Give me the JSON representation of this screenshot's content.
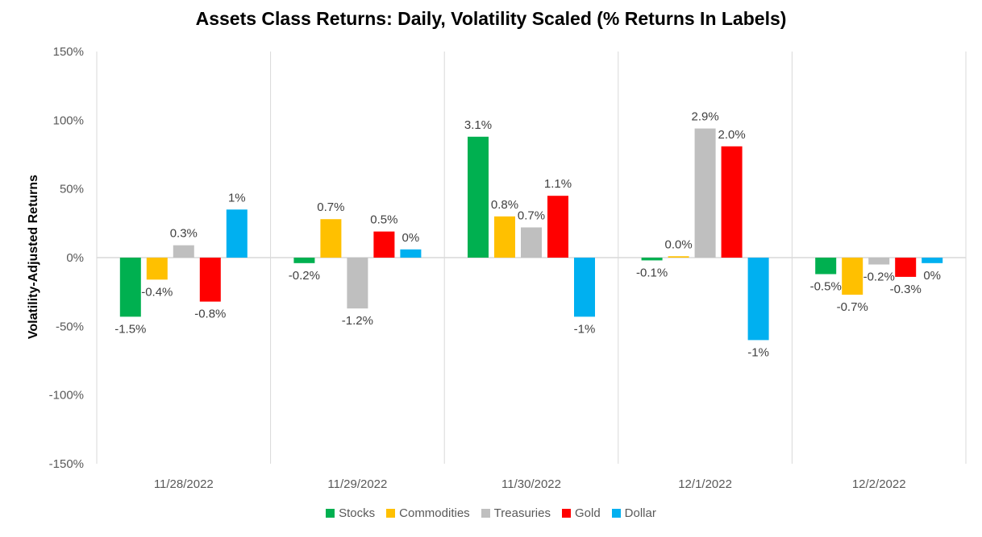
{
  "chart_data": {
    "type": "bar",
    "title": "Assets Class Returns: Daily, Volatility Scaled (% Returns In Labels)",
    "xlabel": "",
    "ylabel": "Volatility-Adjusted Returns",
    "ylim": [
      -150,
      150
    ],
    "yticks": [
      150,
      100,
      50,
      0,
      -50,
      -100,
      -150
    ],
    "ytick_labels": [
      "150%",
      "100%",
      "50%",
      "0%",
      "-50%",
      "-100%",
      "-150%"
    ],
    "categories": [
      "11/28/2022",
      "11/29/2022",
      "11/30/2022",
      "12/1/2022",
      "12/2/2022"
    ],
    "legend_position": "bottom",
    "series": [
      {
        "name": "Stocks",
        "color": "#00b050",
        "values": [
          -43,
          -4,
          88,
          -2,
          -12
        ],
        "labels": [
          "-1.5%",
          "-0.2%",
          "3.1%",
          "-0.1%",
          "-0.5%"
        ]
      },
      {
        "name": "Commodities",
        "color": "#ffc000",
        "values": [
          -16,
          28,
          30,
          1,
          -27
        ],
        "labels": [
          "-0.4%",
          "0.7%",
          "0.8%",
          "0.0%",
          "-0.7%"
        ]
      },
      {
        "name": "Treasuries",
        "color": "#bfbfbf",
        "values": [
          9,
          -37,
          22,
          94,
          -5
        ],
        "labels": [
          "0.3%",
          "-1.2%",
          "0.7%",
          "2.9%",
          "-0.2%"
        ]
      },
      {
        "name": "Gold",
        "color": "#ff0000",
        "values": [
          -32,
          19,
          45,
          81,
          -14
        ],
        "labels": [
          "-0.8%",
          "0.5%",
          "1.1%",
          "2.0%",
          "-0.3%"
        ]
      },
      {
        "name": "Dollar",
        "color": "#00b0f0",
        "values": [
          35,
          6,
          -43,
          -60,
          -4
        ],
        "labels": [
          "1%",
          "0%",
          "-1%",
          "-1%",
          "0%"
        ]
      }
    ]
  }
}
